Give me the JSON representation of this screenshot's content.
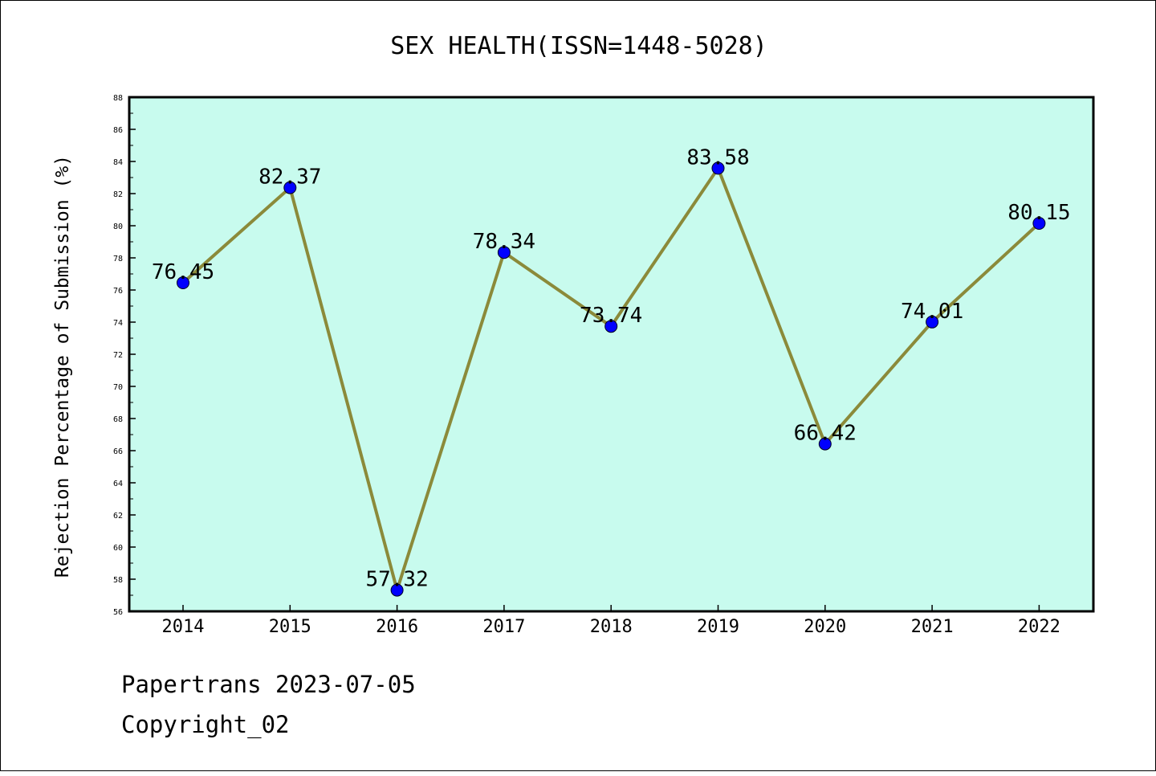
{
  "chart_data": {
    "type": "line",
    "title": "SEX HEALTH(ISSN=1448-5028)",
    "xlabel": "",
    "ylabel": "Rejection Percentage of Submission (%)",
    "categories": [
      "2014",
      "2015",
      "2016",
      "2017",
      "2018",
      "2019",
      "2020",
      "2021",
      "2022"
    ],
    "values": [
      76.45,
      82.37,
      57.32,
      78.34,
      73.74,
      83.58,
      66.42,
      74.01,
      80.15
    ],
    "value_labels": [
      "76.45",
      "82.37",
      "57.32",
      "78.34",
      "73.74",
      "83.58",
      "66.42",
      "74.01",
      "80.15"
    ],
    "ylim": [
      56,
      88
    ],
    "yticks": [
      "56",
      "58",
      "60",
      "62",
      "64",
      "66",
      "68",
      "70",
      "72",
      "74",
      "76",
      "78",
      "80",
      "82",
      "84",
      "86",
      "88"
    ],
    "grid": false,
    "legend": "none",
    "colors": {
      "plot_background": "#c8fbee",
      "line": "#8b8a3a",
      "marker": "#0000ff"
    }
  },
  "footer": {
    "source": "Papertrans 2023-07-05",
    "copyright": "Copyright_02"
  }
}
